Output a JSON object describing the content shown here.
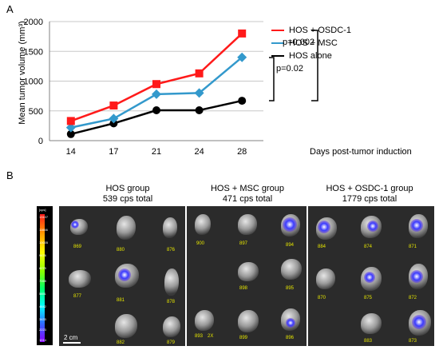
{
  "panel_a_label": "A",
  "panel_b_label": "B",
  "chart_data": {
    "type": "line",
    "x": [
      14,
      17,
      21,
      24,
      28
    ],
    "xlabel": "Days post-tumor induction",
    "ylabel": "Mean tumor volume (mm³)",
    "ylim": [
      0,
      2000
    ],
    "yticks": [
      0,
      500,
      1000,
      1500,
      2000
    ],
    "grid": true,
    "legend_position": "top-right",
    "series": [
      {
        "name": "HOS + OSDC-1",
        "color": "#ff1a1a",
        "marker": "square",
        "values": [
          330,
          590,
          950,
          1130,
          1800
        ]
      },
      {
        "name": "HOS + MSC",
        "color": "#3399cc",
        "marker": "diamond",
        "values": [
          220,
          370,
          780,
          800,
          1400
        ]
      },
      {
        "name": "HOS alone",
        "color": "#000000",
        "marker": "circle",
        "values": [
          110,
          290,
          510,
          510,
          670
        ]
      }
    ],
    "annotations": [
      "p=0.002",
      "p=0.02"
    ]
  },
  "groups": [
    {
      "title": "HOS group",
      "subtitle": "539 cps total",
      "ids": [
        "869",
        "880",
        "876",
        "877",
        "881",
        "878",
        "882",
        "879"
      ]
    },
    {
      "title": "HOS + MSC group",
      "subtitle": "471 cps total",
      "ids": [
        "900",
        "897",
        "894",
        "898",
        "895",
        "893",
        "2X",
        "899",
        "896"
      ]
    },
    {
      "title": "HOS + OSDC-1 group",
      "subtitle": "1779 cps total",
      "ids": [
        "884",
        "874",
        "871",
        "870",
        "875",
        "872",
        "883",
        "873"
      ]
    }
  ],
  "colorbar": {
    "unit": "[cps]",
    "labels": [
      "13107",
      "11666",
      "10005",
      "9476",
      "8275",
      "7065",
      "5851",
      "4642",
      "3433",
      "2223",
      "1014"
    ]
  },
  "scale_label": "2 cm"
}
